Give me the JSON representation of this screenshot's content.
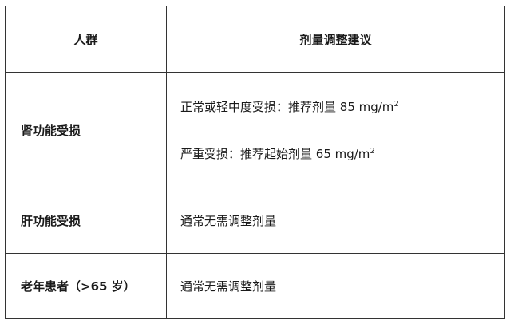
{
  "table": {
    "headers": [
      "人群",
      "剂量调整建议"
    ],
    "rows": [
      {
        "group": "肾功能受损",
        "advice": [
          {
            "text": "正常或轻中度受损：推荐剂量 85 mg/m",
            "sup": "2"
          },
          {
            "text": "严重受损：推荐起始剂量 65 mg/m",
            "sup": "2"
          }
        ]
      },
      {
        "group": "肝功能受损",
        "advice": [
          {
            "text": "通常无需调整剂量"
          }
        ]
      },
      {
        "group": "老年患者（>65 岁）",
        "advice": [
          {
            "text": "通常无需调整剂量"
          }
        ]
      }
    ]
  }
}
